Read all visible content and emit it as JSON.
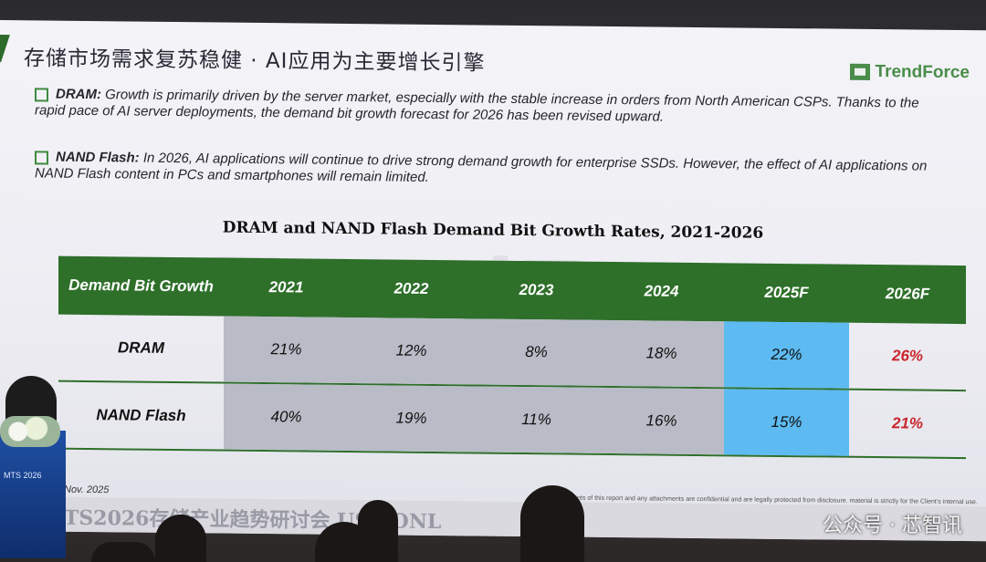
{
  "slide": {
    "title": "存储市场需求复苏稳健 · AI应用为主要增长引擎",
    "logo_text": "TrendForce",
    "logo_icon": "trendforce-logo-icon",
    "bullets": [
      {
        "label": "DRAM:",
        "text": "Growth is primarily driven by the server market, especially with the stable increase in orders from North American CSPs. Thanks to the rapid pace of AI server deployments, the demand bit growth forecast for 2026 has been revised upward."
      },
      {
        "label": "NAND Flash:",
        "text": "In 2026, AI applications will continue to drive strong demand growth for enterprise SSDs. However, the effect of AI applications on NAND Flash content in PCs and smartphones will remain limited."
      }
    ],
    "table_title": "DRAM and NAND Flash Demand Bit Growth Rates, 2021-2026",
    "watermark": "TrendForce",
    "table": {
      "headers": [
        "Demand Bit Growth",
        "2021",
        "2022",
        "2023",
        "2024",
        "2025F",
        "2026F"
      ],
      "rows": [
        {
          "label": "DRAM",
          "values": [
            "21%",
            "12%",
            "8%",
            "18%",
            "22%",
            "26%"
          ]
        },
        {
          "label": "NAND Flash",
          "values": [
            "40%",
            "19%",
            "11%",
            "16%",
            "15%",
            "21%"
          ]
        }
      ],
      "colors": {
        "header_bg": "#2e6f2a",
        "history_bg": "#b9bcc6",
        "forecast_bg": "#5dbbf2",
        "highlight": "#c9252c"
      }
    },
    "date": "Nov. 2025",
    "footer": "TS2026存储产业趋势研讨会 USE ONL",
    "fineprint": "contents of this report and any attachments are confidential and are legally protected from disclosure. material is strictly for the Client's internal use. Use for AI model training or any form of external dissemination is ex TrendForce All Rights Reserved",
    "podium_text": "MTS 2026"
  },
  "overlay": {
    "wechat_watermark": "公众号 · 芯智讯"
  }
}
